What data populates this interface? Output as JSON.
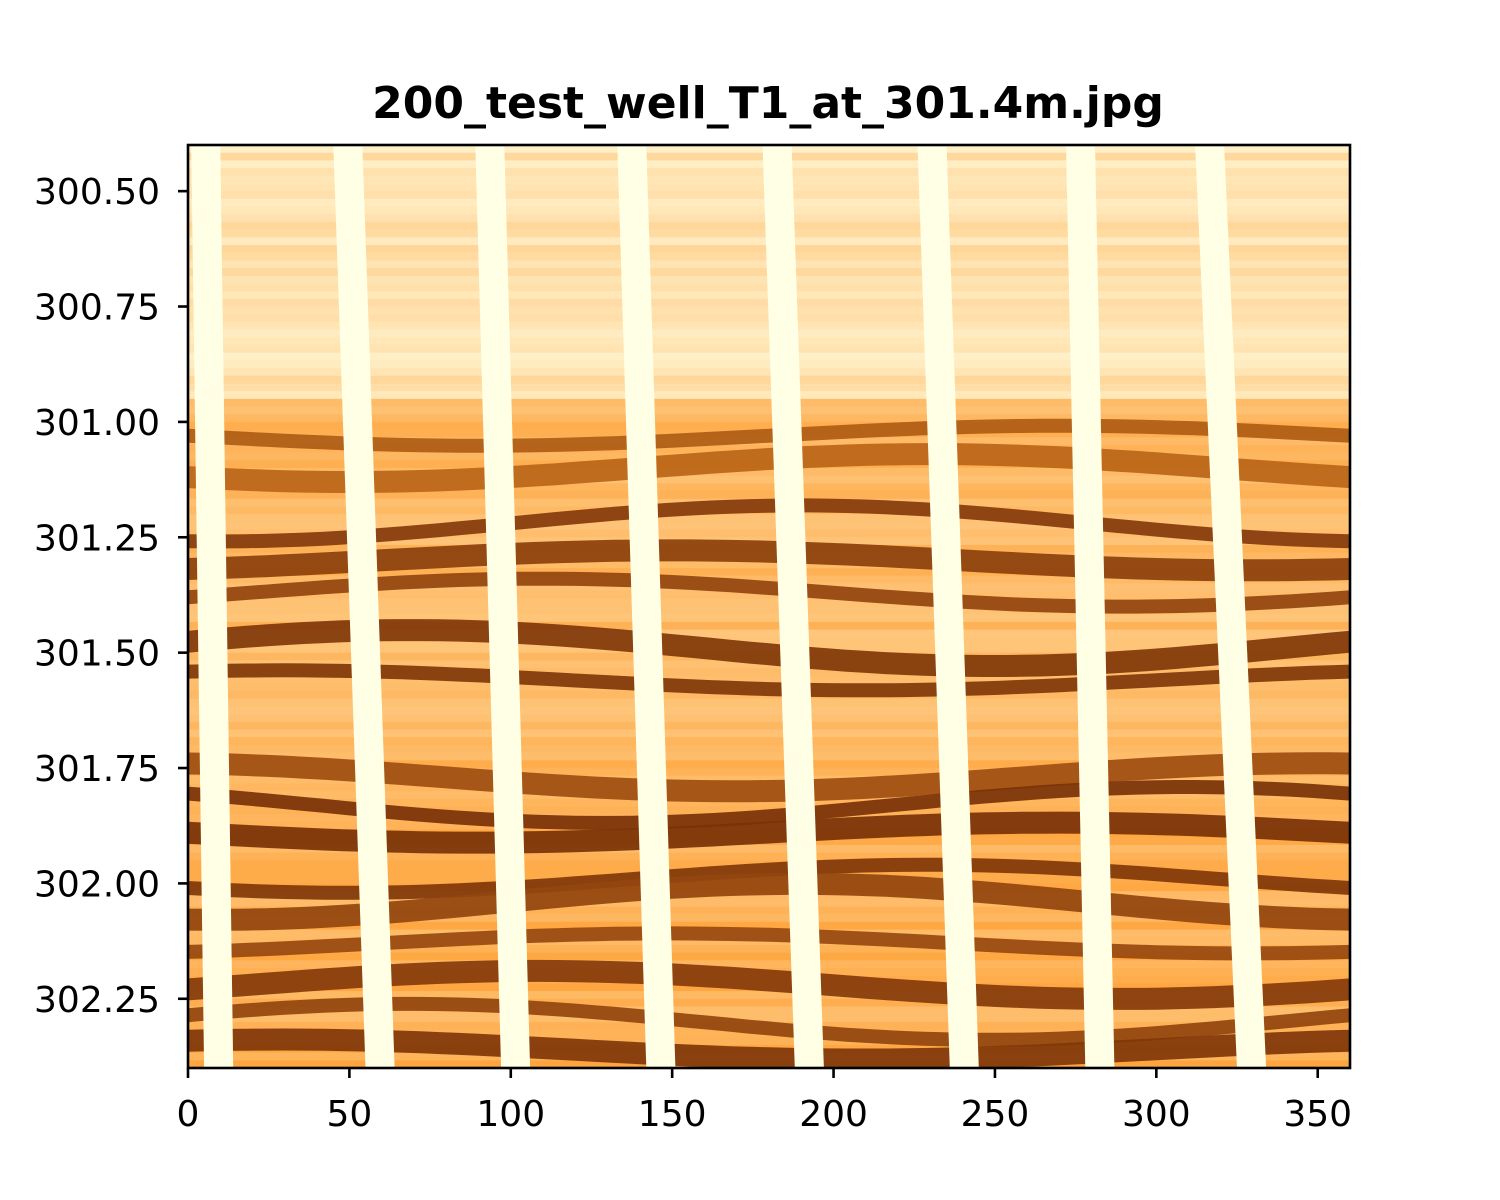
{
  "chart_data": {
    "type": "heatmap",
    "title": "200_test_well_T1_at_301.4m.jpg",
    "xlabel": "",
    "ylabel": "",
    "xlim": [
      0,
      360
    ],
    "ylim": [
      302.4,
      300.4
    ],
    "y_inverted": true,
    "colormap": "YlOrBr",
    "colors": {
      "low": "#ffffe5",
      "mid": "#fe9929",
      "high": "#7a3208"
    },
    "x_ticks": [
      0,
      50,
      100,
      150,
      200,
      250,
      300,
      350
    ],
    "x_tick_labels": [
      "0",
      "50",
      "100",
      "150",
      "200",
      "250",
      "300",
      "350"
    ],
    "y_ticks": [
      300.5,
      300.75,
      301.0,
      301.25,
      301.5,
      301.75,
      302.0,
      302.25
    ],
    "y_tick_labels": [
      "300.50",
      "300.75",
      "301.00",
      "301.25",
      "301.50",
      "301.75",
      "302.00",
      "302.25"
    ],
    "gap_stripes": [
      {
        "x_top": 1,
        "x_bottom": 5
      },
      {
        "x_top": 45,
        "x_bottom": 55
      },
      {
        "x_top": 89,
        "x_bottom": 97
      },
      {
        "x_top": 133,
        "x_bottom": 142
      },
      {
        "x_top": 178,
        "x_bottom": 188
      },
      {
        "x_top": 226,
        "x_bottom": 236
      },
      {
        "x_top": 272,
        "x_bottom": 278
      },
      {
        "x_top": 312,
        "x_bottom": 325
      }
    ],
    "dark_bands": [
      {
        "depth": 301.03,
        "intensity": 0.55
      },
      {
        "depth": 301.1,
        "intensity": 0.45
      },
      {
        "depth": 301.22,
        "intensity": 0.9
      },
      {
        "depth": 301.3,
        "intensity": 0.85
      },
      {
        "depth": 301.37,
        "intensity": 0.8
      },
      {
        "depth": 301.49,
        "intensity": 0.95
      },
      {
        "depth": 301.56,
        "intensity": 0.95
      },
      {
        "depth": 301.77,
        "intensity": 0.7
      },
      {
        "depth": 301.83,
        "intensity": 1.0
      },
      {
        "depth": 301.89,
        "intensity": 1.0
      },
      {
        "depth": 301.99,
        "intensity": 0.95
      },
      {
        "depth": 302.04,
        "intensity": 0.8
      },
      {
        "depth": 302.13,
        "intensity": 0.75
      },
      {
        "depth": 302.22,
        "intensity": 0.9
      },
      {
        "depth": 302.3,
        "intensity": 0.8
      },
      {
        "depth": 302.36,
        "intensity": 0.95
      }
    ]
  }
}
